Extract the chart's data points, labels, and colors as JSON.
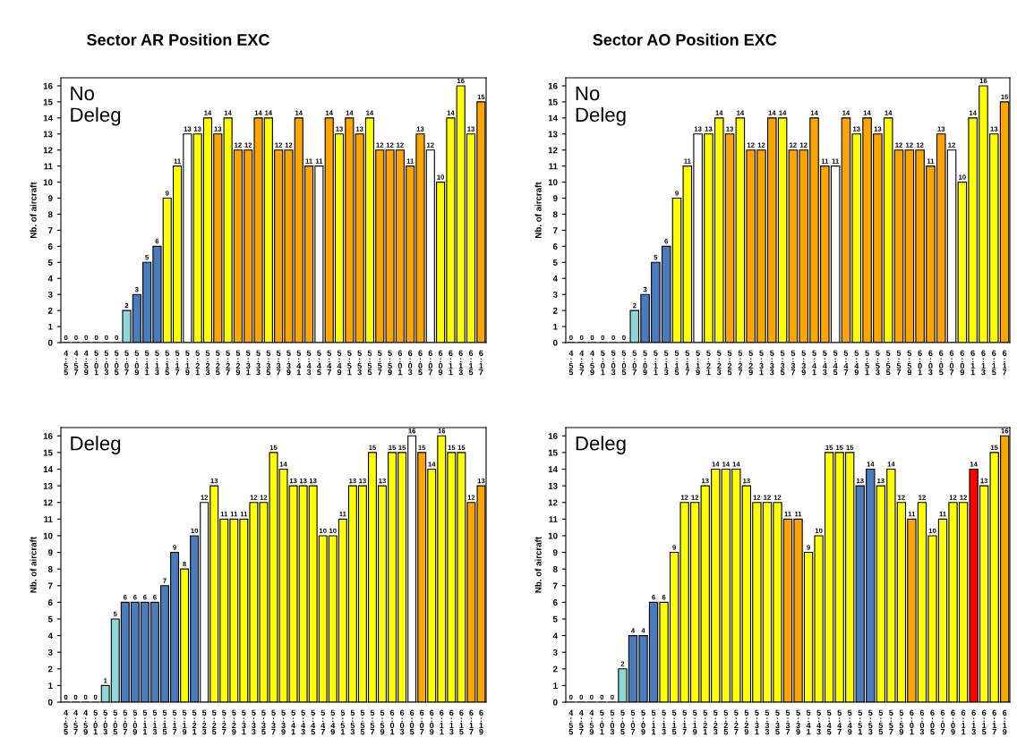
{
  "chart_data": [
    {
      "type": "bar",
      "title": "Sector AR Position EXC",
      "ylabel": "Nb. of aircraft",
      "annotations": [
        "No\nDeleg"
      ],
      "categories": [
        "4:55",
        "4:57",
        "4:59",
        "5:01",
        "5:03",
        "5:05",
        "5:07",
        "5:09",
        "5:11",
        "5:13",
        "5:15",
        "5:17",
        "5:19",
        "5:21",
        "5:23",
        "5:25",
        "5:27",
        "5:29",
        "5:31",
        "5:33",
        "5:35",
        "5:37",
        "5:39",
        "5:41",
        "5:43",
        "5:45",
        "5:47",
        "5:49",
        "5:51",
        "5:53",
        "5:55",
        "5:57",
        "5:59",
        "6:01",
        "6:03",
        "6:05",
        "6:07",
        "6:09",
        "6:11",
        "6:13",
        "6:15",
        "6:17"
      ],
      "values": [
        0,
        0,
        0,
        0,
        0,
        0,
        2,
        3,
        5,
        6,
        9,
        11,
        13,
        13,
        14,
        13,
        14,
        12,
        12,
        14,
        14,
        12,
        12,
        14,
        11,
        11,
        14,
        13,
        14,
        13,
        14,
        12,
        12,
        12,
        11,
        13,
        12,
        10,
        14,
        16,
        13,
        15
      ],
      "colors": [
        "#ffffff",
        "#ffffff",
        "#ffffff",
        "#ffffff",
        "#ffffff",
        "#ffffff",
        "#8fd8d8",
        "#4a7bbd",
        "#4a7bbd",
        "#4a7bbd",
        "#ffff00",
        "#ffff00",
        "#ffffff",
        "#ffff00",
        "#ffff00",
        "#ffa500",
        "#ffff00",
        "#ffa500",
        "#ffa500",
        "#ffa500",
        "#ffff00",
        "#ffa500",
        "#ffa500",
        "#ffa500",
        "#ffa500",
        "#ffffff",
        "#ffa500",
        "#ffff00",
        "#ffa500",
        "#ffa500",
        "#ffff00",
        "#ffa500",
        "#ffa500",
        "#ffa500",
        "#ffa500",
        "#ffa500",
        "#ffffff",
        "#ffff00",
        "#ffff00",
        "#ffff00",
        "#ffff00",
        "#ffa500"
      ],
      "ylim": [
        0,
        16.5
      ],
      "yticks": [
        0,
        1,
        2,
        3,
        4,
        5,
        6,
        7,
        8,
        9,
        10,
        11,
        12,
        13,
        14,
        15,
        16
      ],
      "data_labels": true
    },
    {
      "type": "bar",
      "title": "Sector AO Position EXC",
      "ylabel": "Nb. of aircraft",
      "annotations": [
        "No\nDeleg"
      ],
      "categories": [
        "4:55",
        "4:57",
        "4:59",
        "5:01",
        "5:03",
        "5:05",
        "5:07",
        "5:09",
        "5:11",
        "5:13",
        "5:15",
        "5:17",
        "5:19",
        "5:21",
        "5:23",
        "5:25",
        "5:27",
        "5:29",
        "5:31",
        "5:33",
        "5:35",
        "5:37",
        "5:39",
        "5:41",
        "5:43",
        "5:45",
        "5:47",
        "5:49",
        "5:51",
        "5:53",
        "5:55",
        "5:57",
        "5:59",
        "6:01",
        "6:03",
        "6:05",
        "6:07",
        "6:09",
        "6:11",
        "6:13",
        "6:15",
        "6:17"
      ],
      "values": [
        0,
        0,
        0,
        0,
        0,
        0,
        2,
        3,
        5,
        6,
        9,
        11,
        13,
        13,
        14,
        13,
        14,
        12,
        12,
        14,
        14,
        12,
        12,
        14,
        11,
        11,
        14,
        13,
        14,
        13,
        14,
        12,
        12,
        12,
        11,
        13,
        12,
        10,
        14,
        16,
        13,
        15
      ],
      "colors": [
        "#ffffff",
        "#ffffff",
        "#ffffff",
        "#ffffff",
        "#ffffff",
        "#ffffff",
        "#8fd8d8",
        "#4a7bbd",
        "#4a7bbd",
        "#4a7bbd",
        "#ffff00",
        "#ffff00",
        "#ffffff",
        "#ffff00",
        "#ffff00",
        "#ffa500",
        "#ffff00",
        "#ffa500",
        "#ffa500",
        "#ffa500",
        "#ffff00",
        "#ffa500",
        "#ffa500",
        "#ffa500",
        "#ffa500",
        "#ffffff",
        "#ffa500",
        "#ffff00",
        "#ffa500",
        "#ffa500",
        "#ffff00",
        "#ffa500",
        "#ffa500",
        "#ffa500",
        "#ffa500",
        "#ffa500",
        "#ffffff",
        "#ffff00",
        "#ffff00",
        "#ffff00",
        "#ffff00",
        "#ffa500"
      ],
      "ylim": [
        0,
        16.5
      ],
      "yticks": [
        0,
        1,
        2,
        3,
        4,
        5,
        6,
        7,
        8,
        9,
        10,
        11,
        12,
        13,
        14,
        15,
        16
      ],
      "data_labels": true
    },
    {
      "type": "bar",
      "ylabel": "Nb. of aircraft",
      "annotations": [
        "Deleg"
      ],
      "categories": [
        "4:55",
        "4:57",
        "4:59",
        "5:01",
        "5:03",
        "5:05",
        "5:07",
        "5:09",
        "5:11",
        "5:13",
        "5:15",
        "5:17",
        "5:19",
        "5:21",
        "5:23",
        "5:25",
        "5:27",
        "5:29",
        "5:31",
        "5:33",
        "5:35",
        "5:37",
        "5:39",
        "5:41",
        "5:43",
        "5:45",
        "5:47",
        "5:49",
        "5:51",
        "5:53",
        "5:55",
        "5:57",
        "5:59",
        "6:01",
        "6:03",
        "6:05",
        "6:07",
        "6:09",
        "6:11",
        "6:13",
        "6:15",
        "6:17",
        "6:19"
      ],
      "values": [
        0,
        0,
        0,
        0,
        1,
        5,
        6,
        6,
        6,
        6,
        7,
        9,
        8,
        10,
        12,
        13,
        11,
        11,
        11,
        12,
        12,
        15,
        14,
        13,
        13,
        13,
        10,
        10,
        11,
        13,
        13,
        15,
        13,
        15,
        15,
        16,
        15,
        14,
        16,
        15,
        15,
        12,
        13
      ],
      "colors": [
        "#ffffff",
        "#ffffff",
        "#ffffff",
        "#ffffff",
        "#8fd8d8",
        "#8fd8d8",
        "#4a7bbd",
        "#4a7bbd",
        "#4a7bbd",
        "#4a7bbd",
        "#4a7bbd",
        "#4a7bbd",
        "#ffff00",
        "#4a7bbd",
        "#ffffff",
        "#ffff00",
        "#ffff00",
        "#ffff00",
        "#ffff00",
        "#ffff00",
        "#ffff00",
        "#ffff00",
        "#ffff00",
        "#ffff00",
        "#ffff00",
        "#ffff00",
        "#ffff00",
        "#ffff00",
        "#ffff00",
        "#ffff00",
        "#ffff00",
        "#ffff00",
        "#ffff00",
        "#ffff00",
        "#ffff00",
        "#ffffff",
        "#ffa500",
        "#ffff00",
        "#ffff00",
        "#ffff00",
        "#ffff00",
        "#ffa500",
        "#ffa500"
      ],
      "ylim": [
        0,
        16.5
      ],
      "yticks": [
        0,
        1,
        2,
        3,
        4,
        5,
        6,
        7,
        8,
        9,
        10,
        11,
        12,
        13,
        14,
        15,
        16
      ],
      "data_labels": true
    },
    {
      "type": "bar",
      "ylabel": "Nb. of aircraft",
      "annotations": [
        "Deleg"
      ],
      "categories": [
        "4:55",
        "4:57",
        "4:59",
        "5:01",
        "5:03",
        "5:05",
        "5:07",
        "5:09",
        "5:11",
        "5:13",
        "5:15",
        "5:17",
        "5:19",
        "5:21",
        "5:23",
        "5:25",
        "5:27",
        "5:29",
        "5:31",
        "5:33",
        "5:35",
        "5:37",
        "5:39",
        "5:41",
        "5:43",
        "5:45",
        "5:47",
        "5:49",
        "5:51",
        "5:53",
        "5:55",
        "5:57",
        "5:59",
        "6:01",
        "6:03",
        "6:05",
        "6:07",
        "6:09",
        "6:11",
        "6:13",
        "6:15",
        "6:17",
        "6:19"
      ],
      "values": [
        0,
        0,
        0,
        0,
        0,
        2,
        4,
        4,
        6,
        6,
        9,
        12,
        12,
        13,
        14,
        14,
        14,
        13,
        12,
        12,
        12,
        11,
        11,
        9,
        10,
        15,
        15,
        15,
        13,
        14,
        13,
        14,
        12,
        11,
        12,
        10,
        11,
        12,
        12,
        14,
        13,
        15,
        16
      ],
      "colors": [
        "#ffffff",
        "#ffffff",
        "#ffffff",
        "#ffffff",
        "#ffffff",
        "#8fd8d8",
        "#4a7bbd",
        "#4a7bbd",
        "#4a7bbd",
        "#ffff00",
        "#ffff00",
        "#ffff00",
        "#ffff00",
        "#ffff00",
        "#ffff00",
        "#ffff00",
        "#ffff00",
        "#ffff00",
        "#ffff00",
        "#ffff00",
        "#ffff00",
        "#ffa500",
        "#ffa500",
        "#ffff00",
        "#ffff00",
        "#ffff00",
        "#ffff00",
        "#ffff00",
        "#4a7bbd",
        "#4a7bbd",
        "#ffff00",
        "#ffff00",
        "#ffff00",
        "#ffa500",
        "#ffff00",
        "#ffff00",
        "#ffff00",
        "#ffff00",
        "#ffff00",
        "#ff0000",
        "#ffff00",
        "#ffff00",
        "#ffa500"
      ],
      "ylim": [
        0,
        16.5
      ],
      "yticks": [
        0,
        1,
        2,
        3,
        4,
        5,
        6,
        7,
        8,
        9,
        10,
        11,
        12,
        13,
        14,
        15,
        16
      ],
      "data_labels": true
    }
  ]
}
